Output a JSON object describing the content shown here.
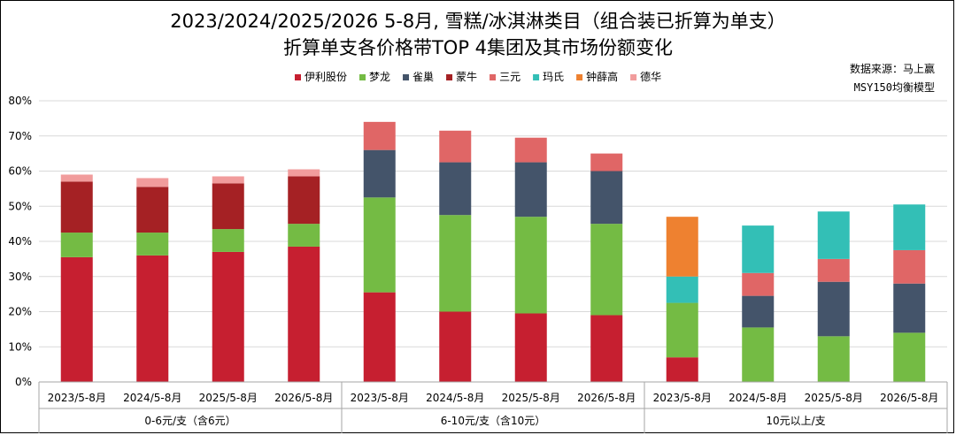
{
  "title_line1": "2023/2024/2025/2026 5-8月, 雪糕/冰淇淋类目（组合装已折算为单支）",
  "title_line2": "折算单支各价格带TOP 4集团及其市场份额变化",
  "source_line1": "数据来源：马上赢",
  "source_line2": "MSY150均衡模型",
  "chart_data": {
    "type": "bar",
    "stacked": true,
    "y_unit": "%",
    "ylim": [
      0,
      80
    ],
    "yticks": [
      0,
      10,
      20,
      30,
      40,
      50,
      60,
      70,
      80
    ],
    "ytick_labels": [
      "0%",
      "10%",
      "20%",
      "30%",
      "40%",
      "50%",
      "60%",
      "70%",
      "80%"
    ],
    "legend_position": "top",
    "grid": true,
    "groups": [
      {
        "label": "0-6元/支（含6元）",
        "categories": [
          "2023/5-8月",
          "2024/5-8月",
          "2025/5-8月",
          "2026/5-8月"
        ],
        "stacks": [
          [
            {
              "series": "伊利股份",
              "value": 35.5
            },
            {
              "series": "梦龙",
              "value": 7.0
            },
            {
              "series": "蒙牛",
              "value": 14.5
            },
            {
              "series": "德华",
              "value": 2.0
            }
          ],
          [
            {
              "series": "伊利股份",
              "value": 36.0
            },
            {
              "series": "梦龙",
              "value": 6.5
            },
            {
              "series": "蒙牛",
              "value": 13.0
            },
            {
              "series": "德华",
              "value": 2.5
            }
          ],
          [
            {
              "series": "伊利股份",
              "value": 37.0
            },
            {
              "series": "梦龙",
              "value": 6.5
            },
            {
              "series": "蒙牛",
              "value": 13.0
            },
            {
              "series": "德华",
              "value": 2.0
            }
          ],
          [
            {
              "series": "伊利股份",
              "value": 38.5
            },
            {
              "series": "梦龙",
              "value": 6.5
            },
            {
              "series": "蒙牛",
              "value": 13.5
            },
            {
              "series": "德华",
              "value": 2.0
            }
          ]
        ]
      },
      {
        "label": "6-10元/支（含10元）",
        "categories": [
          "2023/5-8月",
          "2024/5-8月",
          "2025/5-8月",
          "2026/5-8月"
        ],
        "stacks": [
          [
            {
              "series": "伊利股份",
              "value": 25.5
            },
            {
              "series": "梦龙",
              "value": 27.0
            },
            {
              "series": "雀巢",
              "value": 13.5
            },
            {
              "series": "三元",
              "value": 8.0
            }
          ],
          [
            {
              "series": "伊利股份",
              "value": 20.0
            },
            {
              "series": "梦龙",
              "value": 27.5
            },
            {
              "series": "雀巢",
              "value": 15.0
            },
            {
              "series": "三元",
              "value": 9.0
            }
          ],
          [
            {
              "series": "伊利股份",
              "value": 19.5
            },
            {
              "series": "梦龙",
              "value": 27.5
            },
            {
              "series": "雀巢",
              "value": 15.5
            },
            {
              "series": "三元",
              "value": 7.0
            }
          ],
          [
            {
              "series": "伊利股份",
              "value": 19.0
            },
            {
              "series": "梦龙",
              "value": 26.0
            },
            {
              "series": "雀巢",
              "value": 15.0
            },
            {
              "series": "三元",
              "value": 5.0
            }
          ]
        ]
      },
      {
        "label": "10元以上/支",
        "categories": [
          "2023/5-8月",
          "2024/5-8月",
          "2025/5-8月",
          "2026/5-8月"
        ],
        "stacks": [
          [
            {
              "series": "伊利股份",
              "value": 7.0
            },
            {
              "series": "梦龙",
              "value": 15.5
            },
            {
              "series": "玛氏",
              "value": 7.5
            },
            {
              "series": "钟薛高",
              "value": 17.0
            }
          ],
          [
            {
              "series": "梦龙",
              "value": 15.5
            },
            {
              "series": "雀巢",
              "value": 9.0
            },
            {
              "series": "三元",
              "value": 6.5
            },
            {
              "series": "玛氏",
              "value": 13.5
            }
          ],
          [
            {
              "series": "梦龙",
              "value": 13.0
            },
            {
              "series": "雀巢",
              "value": 15.5
            },
            {
              "series": "三元",
              "value": 6.5
            },
            {
              "series": "玛氏",
              "value": 13.5
            }
          ],
          [
            {
              "series": "梦龙",
              "value": 14.0
            },
            {
              "series": "雀巢",
              "value": 14.0
            },
            {
              "series": "三元",
              "value": 9.5
            },
            {
              "series": "玛氏",
              "value": 13.0
            }
          ]
        ]
      }
    ],
    "series": [
      {
        "name": "伊利股份",
        "color": "#C61F30"
      },
      {
        "name": "梦龙",
        "color": "#74BB44"
      },
      {
        "name": "雀巢",
        "color": "#44546A"
      },
      {
        "name": "蒙牛",
        "color": "#A52124"
      },
      {
        "name": "三元",
        "color": "#E06666"
      },
      {
        "name": "玛氏",
        "color": "#33BFB6"
      },
      {
        "name": "钟薛高",
        "color": "#EE8130"
      },
      {
        "name": "德华",
        "color": "#F19C9C"
      }
    ]
  }
}
